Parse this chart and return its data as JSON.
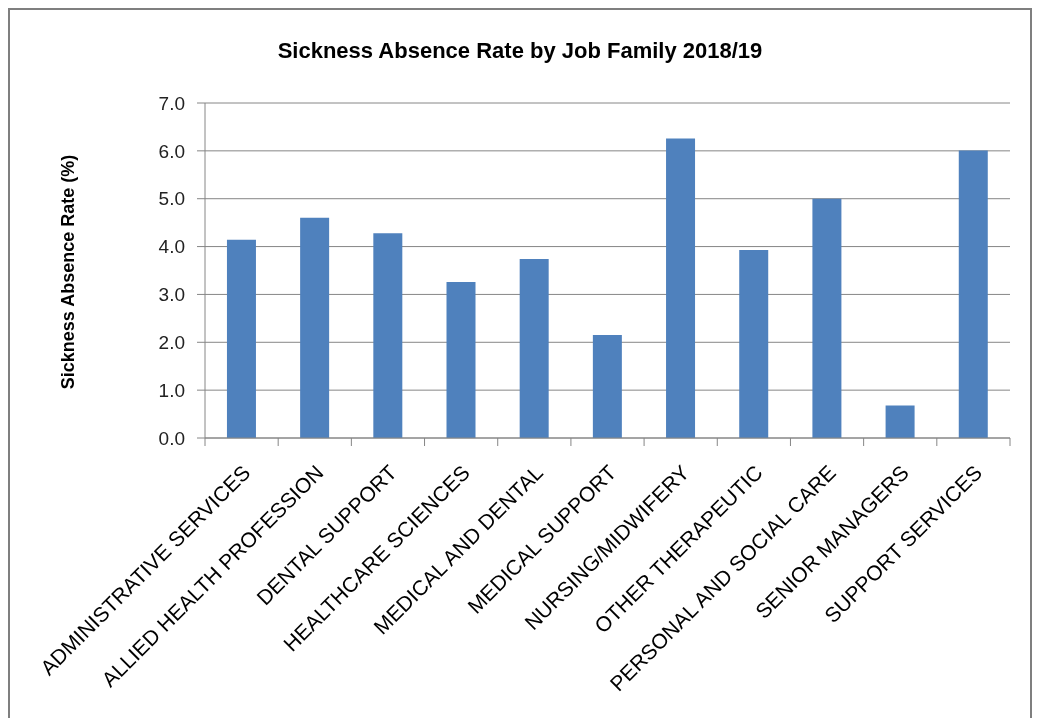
{
  "chart_data": {
    "type": "bar",
    "title": "Sickness Absence Rate by Job Family 2018/19",
    "ylabel": "Sickness Absence Rate (%)",
    "categories": [
      "ADMINISTRATIVE SERVICES",
      "ALLIED HEALTH PROFESSION",
      "DENTAL SUPPORT",
      "HEALTHCARE SCIENCES",
      "MEDICAL AND DENTAL",
      "MEDICAL SUPPORT",
      "NURSING/MIDWIFERY",
      "OTHER THERAPEUTIC",
      "PERSONAL AND SOCIAL CARE",
      "SENIOR MANAGERS",
      "SUPPORT SERVICES"
    ],
    "values": [
      4.14,
      4.6,
      4.28,
      3.26,
      3.74,
      2.15,
      6.26,
      3.93,
      5.0,
      0.68,
      6.01
    ],
    "color": "#4f81bd",
    "ylim": [
      0,
      7
    ],
    "yticks": [
      {
        "value": 0,
        "label": "0.0"
      },
      {
        "value": 1,
        "label": "1.0"
      },
      {
        "value": 2,
        "label": "2.0"
      },
      {
        "value": 3,
        "label": "3.0"
      },
      {
        "value": 4,
        "label": "4.0"
      },
      {
        "value": 5,
        "label": "5.0"
      },
      {
        "value": 6,
        "label": "6.0"
      },
      {
        "value": 7,
        "label": "7.0"
      }
    ],
    "grid": "y"
  }
}
